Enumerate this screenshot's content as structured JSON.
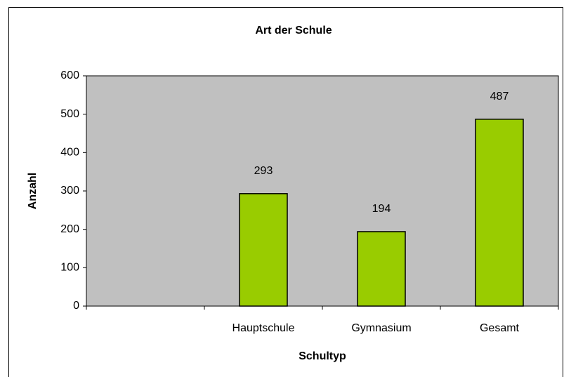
{
  "chart_data": {
    "type": "bar",
    "title": "Art der Schule",
    "x_label": "Schultyp",
    "y_label": "Anzahl",
    "categories": [
      null,
      "Hauptschule",
      "Gymnasium",
      "Gesamt"
    ],
    "values": [
      null,
      293,
      194,
      487
    ],
    "color": "#99cc00",
    "ylim": [
      0,
      600
    ],
    "yticks": [
      0,
      100,
      200,
      300,
      400,
      500,
      600
    ],
    "grid": false
  }
}
